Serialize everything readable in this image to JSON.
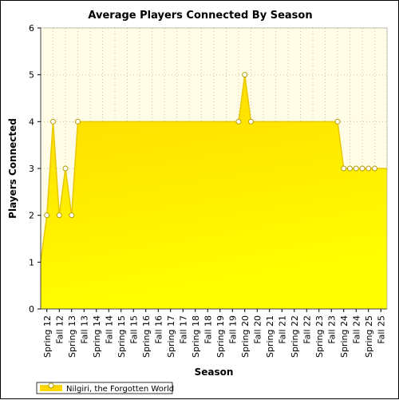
{
  "chart_data": {
    "type": "area",
    "title": "Average Players Connected By Season",
    "xlabel": "Season",
    "ylabel": "Players Connected",
    "ylim": [
      0,
      6
    ],
    "yticks": [
      0,
      1,
      2,
      3,
      4,
      5,
      6
    ],
    "grid": true,
    "legend_placement": "bottom-left",
    "colors": {
      "plot_background": "#fffde6",
      "fill_top": "#ffd800",
      "fill_bottom": "#ffff00",
      "line": "#e8c800",
      "marker_fill": "#ffffff",
      "marker_stroke": "#b89a00",
      "grid": "#c8c8a0"
    },
    "categories": [
      "Spring 12",
      "Fall 12",
      "Spring 13",
      "Fall 13",
      "Spring 14",
      "Fall 14",
      "Spring 15",
      "Fall 15",
      "Spring 16",
      "Fall 16",
      "Spring 17",
      "Fall 17",
      "Spring 18",
      "Fall 18",
      "Spring 19",
      "Fall 19",
      "Spring 20",
      "Fall 20",
      "Spring 21",
      "Fall 21",
      "Spring 22",
      "Fall 22",
      "Spring 23",
      "Fall 23",
      "Spring 24",
      "Fall 24",
      "Spring 25",
      "Fall 25"
    ],
    "x": [
      0,
      0.5,
      1,
      1.5,
      2,
      2.5,
      3,
      16,
      16.5,
      17,
      24,
      24.5,
      25,
      25.5,
      26,
      26.5,
      27
    ],
    "series": [
      {
        "name": "Nilgiri, the Forgotten World",
        "values": [
          1,
          2,
          4,
          2,
          3,
          2,
          4,
          4,
          5,
          4,
          4,
          3,
          3,
          3,
          3,
          3,
          3
        ],
        "markers": [
          false,
          true,
          true,
          true,
          true,
          true,
          true,
          true,
          true,
          true,
          true,
          true,
          true,
          true,
          true,
          true,
          true
        ]
      }
    ]
  }
}
